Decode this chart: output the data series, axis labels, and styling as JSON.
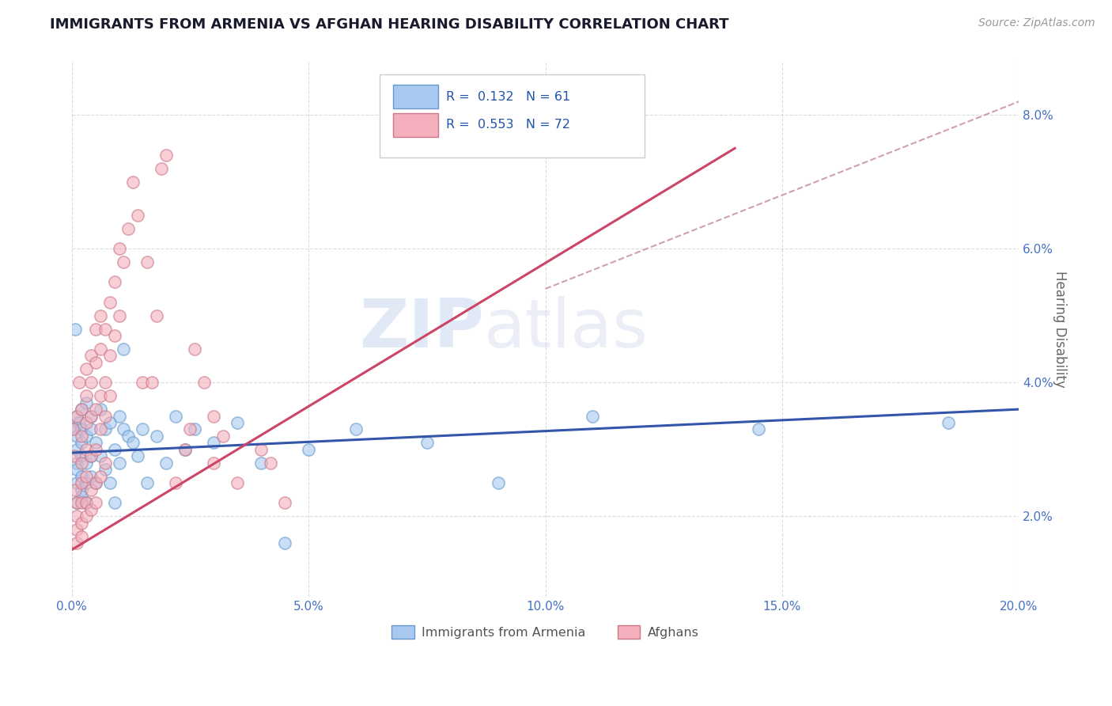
{
  "title": "IMMIGRANTS FROM ARMENIA VS AFGHAN HEARING DISABILITY CORRELATION CHART",
  "source": "Source: ZipAtlas.com",
  "ylabel": "Hearing Disability",
  "xlim": [
    0.0,
    0.2
  ],
  "ylim": [
    0.008,
    0.088
  ],
  "ytick_values": [
    0.02,
    0.04,
    0.06,
    0.08
  ],
  "xtick_values": [
    0.0,
    0.05,
    0.1,
    0.15,
    0.2
  ],
  "legend_r_items": [
    {
      "label": "R =  0.132   N = 61",
      "color": "#a8c8f0"
    },
    {
      "label": "R =  0.553   N = 72",
      "color": "#f4b0bc"
    }
  ],
  "legend_bottom_items": [
    {
      "label": "Immigrants from Armenia",
      "color": "#a8c8f0"
    },
    {
      "label": "Afghans",
      "color": "#f4b0bc"
    }
  ],
  "armenia_points": [
    [
      0.0005,
      0.033
    ],
    [
      0.0008,
      0.048
    ],
    [
      0.001,
      0.028
    ],
    [
      0.001,
      0.032
    ],
    [
      0.001,
      0.025
    ],
    [
      0.001,
      0.03
    ],
    [
      0.001,
      0.022
    ],
    [
      0.001,
      0.035
    ],
    [
      0.001,
      0.027
    ],
    [
      0.0015,
      0.034
    ],
    [
      0.002,
      0.029
    ],
    [
      0.002,
      0.033
    ],
    [
      0.002,
      0.026
    ],
    [
      0.002,
      0.031
    ],
    [
      0.002,
      0.024
    ],
    [
      0.002,
      0.036
    ],
    [
      0.002,
      0.023
    ],
    [
      0.003,
      0.037
    ],
    [
      0.003,
      0.028
    ],
    [
      0.003,
      0.032
    ],
    [
      0.003,
      0.025
    ],
    [
      0.003,
      0.022
    ],
    [
      0.004,
      0.035
    ],
    [
      0.004,
      0.029
    ],
    [
      0.004,
      0.033
    ],
    [
      0.004,
      0.026
    ],
    [
      0.005,
      0.031
    ],
    [
      0.005,
      0.025
    ],
    [
      0.006,
      0.036
    ],
    [
      0.006,
      0.029
    ],
    [
      0.007,
      0.033
    ],
    [
      0.007,
      0.027
    ],
    [
      0.008,
      0.034
    ],
    [
      0.008,
      0.025
    ],
    [
      0.009,
      0.03
    ],
    [
      0.009,
      0.022
    ],
    [
      0.01,
      0.035
    ],
    [
      0.01,
      0.028
    ],
    [
      0.011,
      0.033
    ],
    [
      0.011,
      0.045
    ],
    [
      0.012,
      0.032
    ],
    [
      0.013,
      0.031
    ],
    [
      0.014,
      0.029
    ],
    [
      0.015,
      0.033
    ],
    [
      0.016,
      0.025
    ],
    [
      0.018,
      0.032
    ],
    [
      0.02,
      0.028
    ],
    [
      0.022,
      0.035
    ],
    [
      0.024,
      0.03
    ],
    [
      0.026,
      0.033
    ],
    [
      0.03,
      0.031
    ],
    [
      0.035,
      0.034
    ],
    [
      0.04,
      0.028
    ],
    [
      0.045,
      0.016
    ],
    [
      0.05,
      0.03
    ],
    [
      0.06,
      0.033
    ],
    [
      0.075,
      0.031
    ],
    [
      0.09,
      0.025
    ],
    [
      0.11,
      0.035
    ],
    [
      0.145,
      0.033
    ],
    [
      0.185,
      0.034
    ]
  ],
  "afghan_points": [
    [
      0.0003,
      0.033
    ],
    [
      0.0005,
      0.029
    ],
    [
      0.0007,
      0.024
    ],
    [
      0.001,
      0.022
    ],
    [
      0.001,
      0.035
    ],
    [
      0.001,
      0.02
    ],
    [
      0.001,
      0.018
    ],
    [
      0.001,
      0.016
    ],
    [
      0.0015,
      0.04
    ],
    [
      0.002,
      0.036
    ],
    [
      0.002,
      0.032
    ],
    [
      0.002,
      0.028
    ],
    [
      0.002,
      0.025
    ],
    [
      0.002,
      0.022
    ],
    [
      0.002,
      0.019
    ],
    [
      0.002,
      0.017
    ],
    [
      0.003,
      0.042
    ],
    [
      0.003,
      0.038
    ],
    [
      0.003,
      0.034
    ],
    [
      0.003,
      0.03
    ],
    [
      0.003,
      0.026
    ],
    [
      0.003,
      0.022
    ],
    [
      0.003,
      0.02
    ],
    [
      0.004,
      0.044
    ],
    [
      0.004,
      0.04
    ],
    [
      0.004,
      0.035
    ],
    [
      0.004,
      0.029
    ],
    [
      0.004,
      0.024
    ],
    [
      0.004,
      0.021
    ],
    [
      0.005,
      0.048
    ],
    [
      0.005,
      0.043
    ],
    [
      0.005,
      0.036
    ],
    [
      0.005,
      0.03
    ],
    [
      0.005,
      0.025
    ],
    [
      0.005,
      0.022
    ],
    [
      0.006,
      0.05
    ],
    [
      0.006,
      0.045
    ],
    [
      0.006,
      0.038
    ],
    [
      0.006,
      0.033
    ],
    [
      0.006,
      0.026
    ],
    [
      0.007,
      0.048
    ],
    [
      0.007,
      0.04
    ],
    [
      0.007,
      0.035
    ],
    [
      0.007,
      0.028
    ],
    [
      0.008,
      0.052
    ],
    [
      0.008,
      0.044
    ],
    [
      0.008,
      0.038
    ],
    [
      0.009,
      0.055
    ],
    [
      0.009,
      0.047
    ],
    [
      0.01,
      0.06
    ],
    [
      0.01,
      0.05
    ],
    [
      0.011,
      0.058
    ],
    [
      0.012,
      0.063
    ],
    [
      0.013,
      0.07
    ],
    [
      0.014,
      0.065
    ],
    [
      0.015,
      0.04
    ],
    [
      0.016,
      0.058
    ],
    [
      0.017,
      0.04
    ],
    [
      0.018,
      0.05
    ],
    [
      0.019,
      0.072
    ],
    [
      0.02,
      0.074
    ],
    [
      0.022,
      0.025
    ],
    [
      0.024,
      0.03
    ],
    [
      0.025,
      0.033
    ],
    [
      0.026,
      0.045
    ],
    [
      0.028,
      0.04
    ],
    [
      0.03,
      0.035
    ],
    [
      0.03,
      0.028
    ],
    [
      0.032,
      0.032
    ],
    [
      0.035,
      0.025
    ],
    [
      0.04,
      0.03
    ],
    [
      0.042,
      0.028
    ],
    [
      0.045,
      0.022
    ]
  ],
  "armenia_line_x": [
    0.0,
    0.2
  ],
  "armenia_line_y": [
    0.0295,
    0.036
  ],
  "afghan_line_x": [
    0.0,
    0.14
  ],
  "afghan_line_y": [
    0.015,
    0.075
  ],
  "trendline_x": [
    0.1,
    0.2
  ],
  "trendline_y": [
    0.054,
    0.082
  ],
  "background_color": "#ffffff",
  "grid_color": "#cccccc",
  "watermark_zip": "ZIP",
  "watermark_atlas": "atlas",
  "armenia_dot_color": "#a8c8f0",
  "armenia_dot_edge": "#6699cc",
  "afghan_dot_color": "#f4b0bc",
  "afghan_dot_edge": "#cc7788",
  "armenia_line_color": "#3355aa",
  "afghan_line_color": "#cc4466",
  "trendline_color": "#d0a0b0"
}
